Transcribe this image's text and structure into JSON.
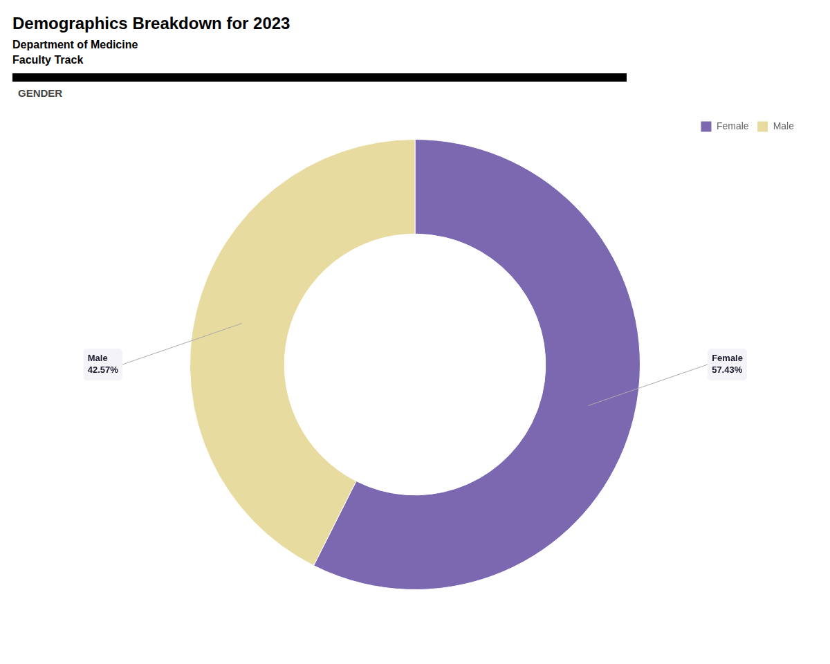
{
  "chart_data": {
    "type": "doughnut",
    "title": "Demographics Breakdown for 2023",
    "subtitle": [
      "Department of Medicine",
      "Faculty Track"
    ],
    "section_label": "GENDER",
    "categories": [
      "Female",
      "Male"
    ],
    "values": [
      57.43,
      42.57
    ],
    "colors": [
      "#7B68B0",
      "#E8DBA0"
    ],
    "data_labels": true,
    "value_labels": [
      "Female\n57.43%",
      "Male\n42.57%"
    ],
    "legend": "upper right"
  }
}
